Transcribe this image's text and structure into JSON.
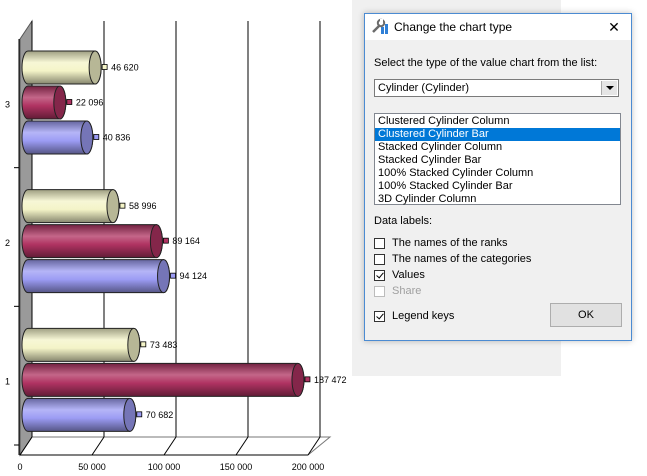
{
  "chart_data": {
    "type": "bar",
    "orientation": "horizontal",
    "style": "3d-cylinder-clustered",
    "categories": [
      "1",
      "2",
      "3"
    ],
    "series": [
      {
        "values": [
          70682,
          94124,
          40836
        ],
        "color": "#9c9cf4"
      },
      {
        "values": [
          187472,
          89164,
          22096
        ],
        "color": "#b03362"
      },
      {
        "values": [
          73483,
          58996,
          46620
        ],
        "color": "#f4f4c8"
      }
    ],
    "value_labels": [
      [
        "70 682",
        "94 124",
        "40 836"
      ],
      [
        "187 472",
        "89 164",
        "22 096"
      ],
      [
        "73 483",
        "58 996",
        "46 620"
      ]
    ],
    "x_ticks": [
      "0",
      "50 000",
      "100 000",
      "150 000",
      "200 000"
    ],
    "xlim": [
      0,
      200000
    ],
    "grid": true,
    "legend": "none",
    "title": "",
    "xlabel": "",
    "ylabel": ""
  },
  "dialog": {
    "title": "Change the chart type",
    "close_label": "✕",
    "prompt": "Select the type of the value chart from the list:",
    "combo_value": "Cylinder (Cylinder)",
    "list_items": [
      "Clustered Cylinder Column",
      "Clustered Cylinder Bar",
      "Stacked Cylinder Column",
      "Stacked Cylinder Bar",
      "100% Stacked Cylinder Column",
      "100% Stacked Cylinder Bar",
      "3D Cylinder Column"
    ],
    "selected_index": 1,
    "data_labels_title": "Data labels:",
    "checkboxes": [
      {
        "label": "The names of the ranks",
        "checked": false,
        "disabled": false
      },
      {
        "label": "The names of the categories",
        "checked": false,
        "disabled": false
      },
      {
        "label": "Values",
        "checked": true,
        "disabled": false
      },
      {
        "label": "Share",
        "checked": false,
        "disabled": true
      }
    ],
    "legend_keys": {
      "label": "Legend keys",
      "checked": true
    },
    "ok_label": "OK",
    "icon": "wrench-chart-icon",
    "accent": "#0078d7"
  }
}
